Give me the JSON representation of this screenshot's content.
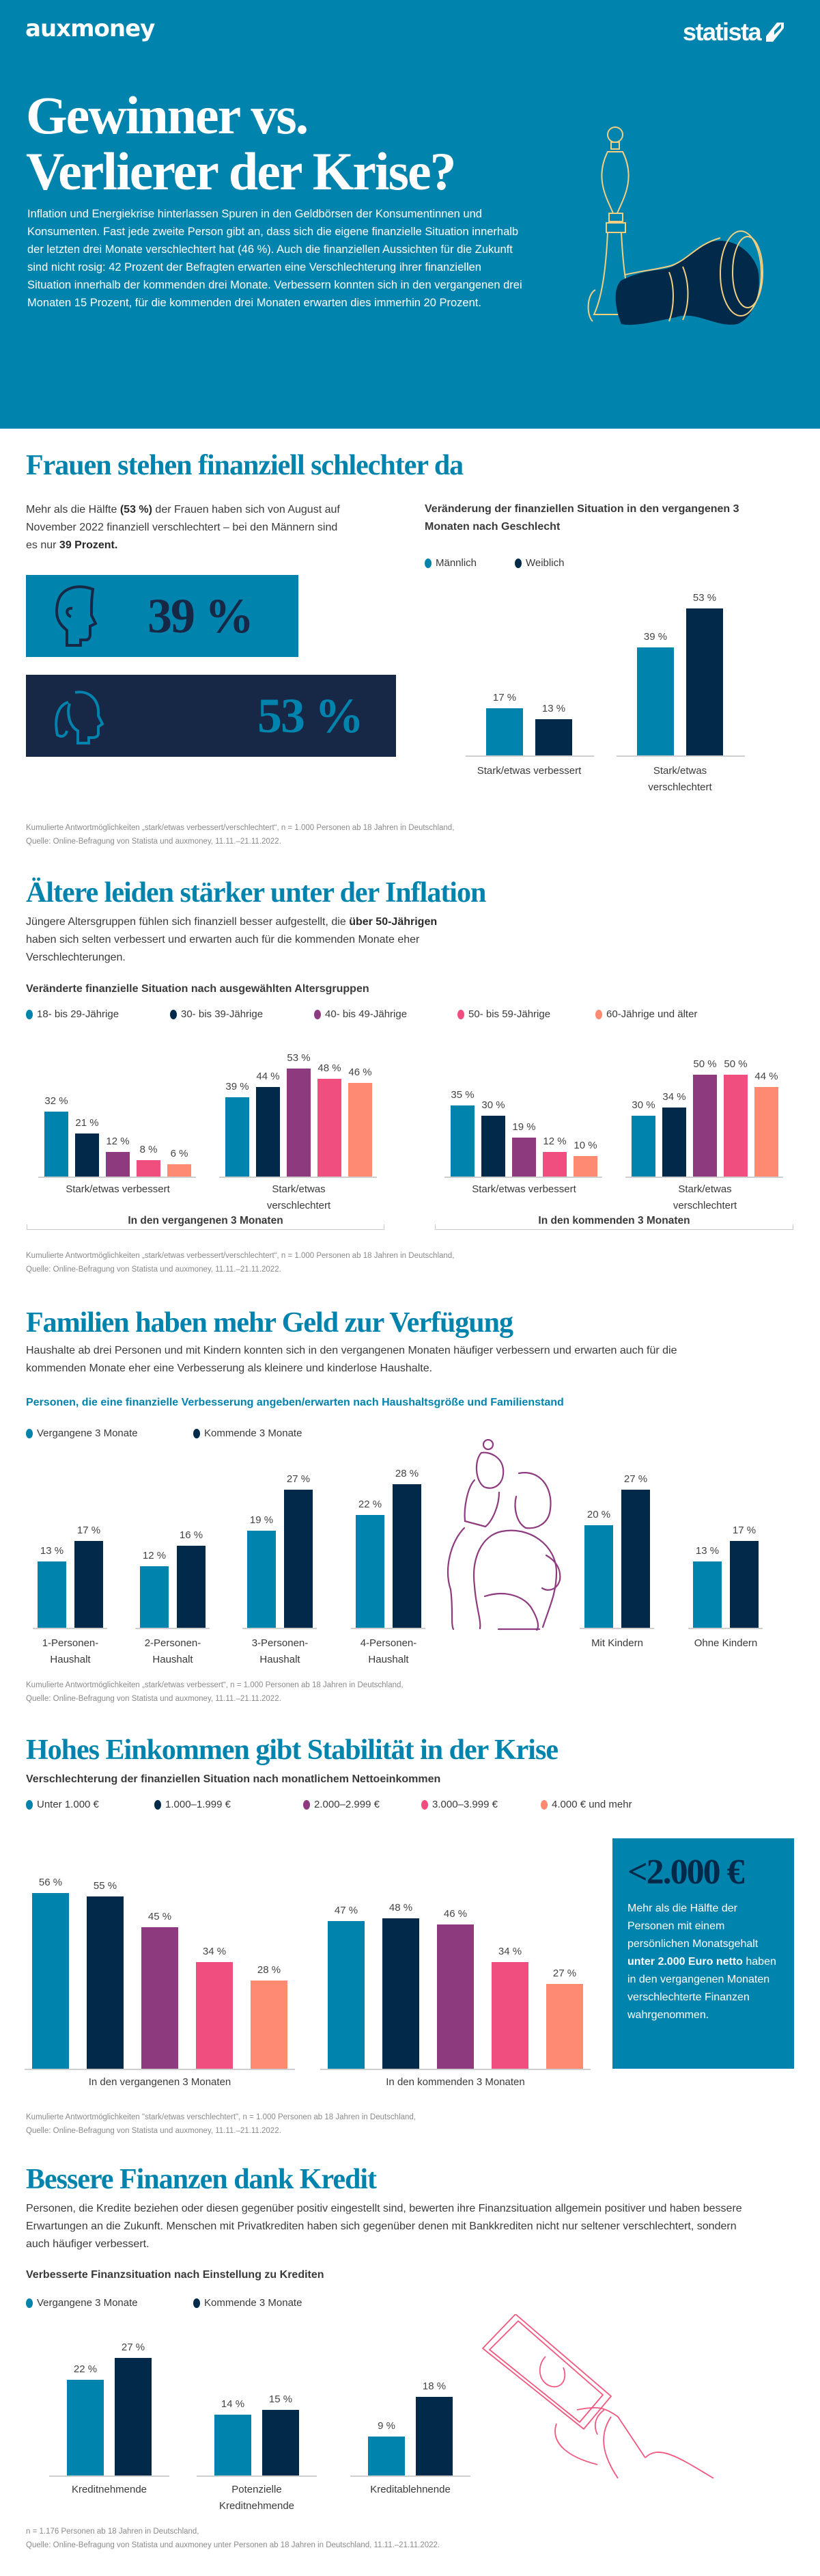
{
  "colors": {
    "teal": "#0083ad",
    "navy": "#012a4a",
    "purple": "#8e3a7f",
    "pink": "#f04e7e",
    "salmon": "#ff8a72",
    "box_navy": "#172846"
  },
  "header": {
    "logo_left": "auxmoney",
    "logo_right": "statista",
    "title_line1": "Gewinner vs.",
    "title_line2": "Verlierer der Krise?",
    "intro": "Inflation und Energiekrise hinterlassen Spuren in den Geldbörsen der Konsumentinnen und Konsumenten. Fast jede zweite Person gibt an, dass sich die eigene finanzielle Situation innerhalb der letzten drei Monate verschlechtert hat (46 %). Auch die finanziellen Aussichten für die Zukunft sind nicht rosig: 42 Prozent der Befragten erwarten eine Verschlechterung ihrer finanziellen Situation innerhalb der kommenden drei Monate. Verbessern konnten sich in den vergangenen drei Monaten 15 Prozent, für die kommenden drei Monaten erwarten dies immerhin 20 Prozent.",
    "illustration": "chess-pieces-icon"
  },
  "s1": {
    "title": "Frauen stehen finanziell schlechter da",
    "body": [
      "Mehr als die Hälfte ",
      "(53 %)",
      " der Frauen haben sich von August auf November 2022 finanziell verschlechtert – bei den Männern sind es nur ",
      "39 Prozent."
    ],
    "stat_male": "39 %",
    "stat_female": "53 %",
    "icons": [
      "male-head-icon",
      "female-head-icon"
    ],
    "footnote1": "Kumulierte Antwortmöglichkeiten „stark/etwas verbessert/verschlechtert“, n = 1.000 Personen ab 18 Jahren in Deutschland,",
    "footnote2": "Quelle: Online-Befragung von Statista und auxmoney, 11.11.–21.11.2022."
  },
  "s2": {
    "title": "Ältere leiden stärker unter der Inflation",
    "body": [
      "Jüngere Altersgruppen fühlen sich finanziell besser aufgestellt, die ",
      "über 50-Jährigen",
      " haben sich selten verbessert und erwarten auch für die kommenden Monate eher Verschlechterungen."
    ],
    "footnote1": "Kumulierte Antwortmöglichkeiten „stark/etwas verbessert/verschlechtert“, n = 1.000 Personen ab 18 Jahren in Deutschland,",
    "footnote2": "Quelle: Online-Befragung von Statista und auxmoney, 11.11.–21.11.2022."
  },
  "s3": {
    "title": "Familien haben mehr Geld zur Verfügung",
    "body": "Haushalte ab drei Personen und mit Kindern konnten sich in den vergangenen Monaten häufiger verbessern und erwarten auch für die kommenden Monate eher eine Verbesserung als kleinere und kinderlose Haushalte.",
    "illustration": "family-line-drawing-icon",
    "footnote1": "Kumulierte Antwortmöglichkeiten „stark/etwas verbessert“, n = 1.000 Personen ab 18 Jahren in Deutschland,",
    "footnote2": "Quelle: Online-Befragung von Statista und auxmoney, 11.11.–21.11.2022."
  },
  "s4": {
    "title": "Hohes Einkommen gibt Stabilität in der Krise",
    "box_number": "<2.000 €",
    "box_text": [
      "Mehr als die Hälfte der Personen mit einem persönlichen Monatsgehalt ",
      "unter 2.000 Euro netto",
      " haben in den vergangenen Monaten verschlechterte Finanzen wahrgenommen."
    ],
    "footnote1": "Kumulierte Antwortmöglichkeiten \"stark/etwas verschlechtert\", n = 1.000 Personen ab 18 Jahren in Deutschland,",
    "footnote2": "Quelle: Online-Befragung von Statista und auxmoney, 11.11.–21.11.2022."
  },
  "s5": {
    "title": "Bessere Finanzen dank Kredit",
    "body": "Personen, die Kredite beziehen oder diesen gegenüber positiv eingestellt sind, bewerten ihre Finanzsituation allgemein positiver und haben bessere Erwartungen an die Zukunft. Menschen mit Privatkrediten haben sich gegenüber denen mit Bankkrediten nicht nur seltener verschlechtert, sondern auch häufiger verbessert.",
    "illustration": "hand-with-banknote-icon",
    "footnote1": "n = 1.176 Personen ab 18 Jahren in Deutschland,",
    "footnote2": "Quelle: Online-Befragung von Statista und auxmoney unter Personen ab 18 Jahren in Deutschland, 11.11.–21.11.2022."
  },
  "chart_data": [
    {
      "type": "bar",
      "title": "Veränderung der finanziellen Situation in den vergangenen 3 Monaten nach Geschlecht",
      "unit": "%",
      "legend": "top-left",
      "grid": false,
      "categories": [
        "Stark/etwas verbessert",
        "Stark/etwas verschlechtert"
      ],
      "series": [
        {
          "name": "Männlich",
          "color": "#0083ad",
          "values": [
            17,
            39
          ]
        },
        {
          "name": "Weiblich",
          "color": "#012a4a",
          "values": [
            13,
            53
          ]
        }
      ]
    },
    {
      "type": "bar",
      "title": "Veränderte finanzielle Situation nach ausgewählten Altersgruppen",
      "unit": "%",
      "legend": "top-left",
      "grid": false,
      "categories": [
        "Stark/etwas verbessert",
        "Stark/etwas verschlechtert",
        "Stark/etwas verbessert",
        "Stark/etwas verschlechtert"
      ],
      "groups": [
        "In den vergangenen 3 Monaten",
        "In den kommenden 3 Monaten"
      ],
      "series": [
        {
          "name": "18- bis 29-Jährige",
          "color": "#0083ad",
          "values": [
            32,
            39,
            35,
            30
          ]
        },
        {
          "name": "30- bis 39-Jährige",
          "color": "#012a4a",
          "values": [
            21,
            44,
            30,
            34
          ]
        },
        {
          "name": "40- bis 49-Jährige",
          "color": "#8e3a7f",
          "values": [
            12,
            53,
            19,
            50
          ]
        },
        {
          "name": "50- bis 59-Jährige",
          "color": "#f04e7e",
          "values": [
            8,
            48,
            12,
            50
          ]
        },
        {
          "name": "60-Jährige und älter",
          "color": "#ff8a72",
          "values": [
            6,
            46,
            10,
            44
          ]
        }
      ]
    },
    {
      "type": "bar",
      "title": "Personen, die eine finanzielle Verbesserung angeben/erwarten nach Haushaltsgröße und Familienstand",
      "unit": "%",
      "legend": "top-left",
      "grid": false,
      "categories": [
        "1-Personen-Haushalt",
        "2-Personen-Haushalt",
        "3-Personen-Haushalt",
        "4-Personen-Haushalt",
        "Mit Kindern",
        "Ohne Kindern"
      ],
      "series": [
        {
          "name": "Vergangene 3 Monate",
          "color": "#0083ad",
          "values": [
            13,
            12,
            19,
            22,
            20,
            13
          ]
        },
        {
          "name": "Kommende 3 Monate",
          "color": "#012a4a",
          "values": [
            17,
            16,
            27,
            28,
            27,
            17
          ]
        }
      ]
    },
    {
      "type": "bar",
      "title": "Verschlechterung der finanziellen Situation nach monatlichem Nettoeinkommen",
      "unit": "%",
      "legend": "top-left",
      "grid": false,
      "categories": [
        "In den vergangenen 3 Monaten",
        "In den kommenden 3 Monaten"
      ],
      "series": [
        {
          "name": "Unter 1.000 €",
          "color": "#0083ad",
          "values": [
            56,
            47
          ]
        },
        {
          "name": "1.000–1.999 €",
          "color": "#012a4a",
          "values": [
            55,
            48
          ]
        },
        {
          "name": "2.000–2.999 €",
          "color": "#8e3a7f",
          "values": [
            45,
            46
          ]
        },
        {
          "name": "3.000–3.999 €",
          "color": "#f04e7e",
          "values": [
            34,
            34
          ]
        },
        {
          "name": "4.000 € und mehr",
          "color": "#ff8a72",
          "values": [
            28,
            27
          ]
        }
      ]
    },
    {
      "type": "bar",
      "title": "Verbesserte Finanzsituation nach Einstellung zu Krediten",
      "unit": "%",
      "legend": "top-left",
      "grid": false,
      "categories": [
        "Kreditnehmende",
        "Potenzielle Kreditnehmende",
        "Kreditablehnende"
      ],
      "series": [
        {
          "name": "Vergangene 3 Monate",
          "color": "#0083ad",
          "values": [
            22,
            14,
            9
          ]
        },
        {
          "name": "Kommende 3 Monate",
          "color": "#012a4a",
          "values": [
            27,
            15,
            18
          ]
        }
      ]
    }
  ]
}
